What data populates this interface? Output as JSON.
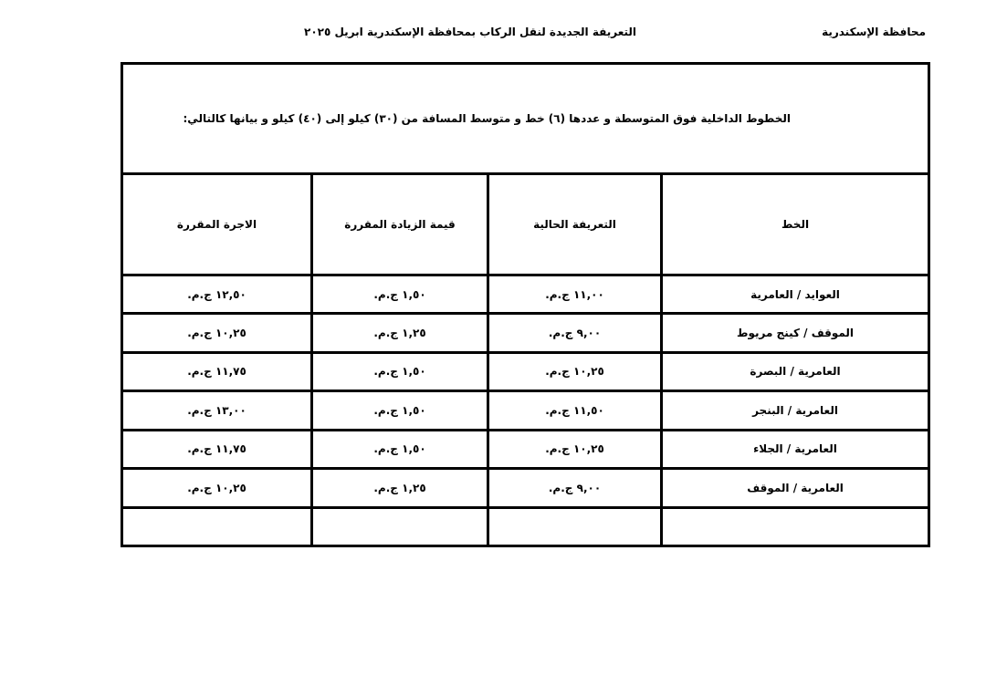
{
  "header": {
    "governorate": "محافظة الإسكندرية",
    "title": "التعريفة الجديدة لنقل الركاب بمحافظة الإسكندرية ابريل ٢٠٢٥"
  },
  "table": {
    "intro": "الخطوط الداخلية فوق المتوسطة و عددها (٦) خط و متوسط المسافة من (٣٠) كيلو إلى (٤٠) كيلو و بيانها كالتالي:",
    "columns": [
      "الخط",
      "التعريفة الحالية",
      "قيمة الزيادة المقررة",
      "الاجرة المقررة"
    ],
    "rows": [
      [
        "العوايد / العامرية",
        "١١,٠٠ ج.م.",
        "١,٥٠ ج.م.",
        "١٢,٥٠ ج.م."
      ],
      [
        "الموقف / كينج مريوط",
        "٩,٠٠ ج.م.",
        "١,٢٥ ج.م.",
        "١٠,٢٥ ج.م."
      ],
      [
        "العامرية / البصرة",
        "١٠,٢٥ ج.م.",
        "١,٥٠ ج.م.",
        "١١,٧٥ ج.م."
      ],
      [
        "العامرية / البنجر",
        "١١,٥٠ ج.م.",
        "١,٥٠ ج.م.",
        "١٣,٠٠ ج.م."
      ],
      [
        "العامرية / الجلاء",
        "١٠,٢٥ ج.م.",
        "١,٥٠ ج.م.",
        "١١,٧٥ ج.م."
      ],
      [
        "العامرية / الموقف",
        "٩,٠٠ ج.م.",
        "١,٢٥ ج.م.",
        "١٠,٢٥ ج.م."
      ],
      [
        "",
        "",
        "",
        ""
      ]
    ]
  }
}
